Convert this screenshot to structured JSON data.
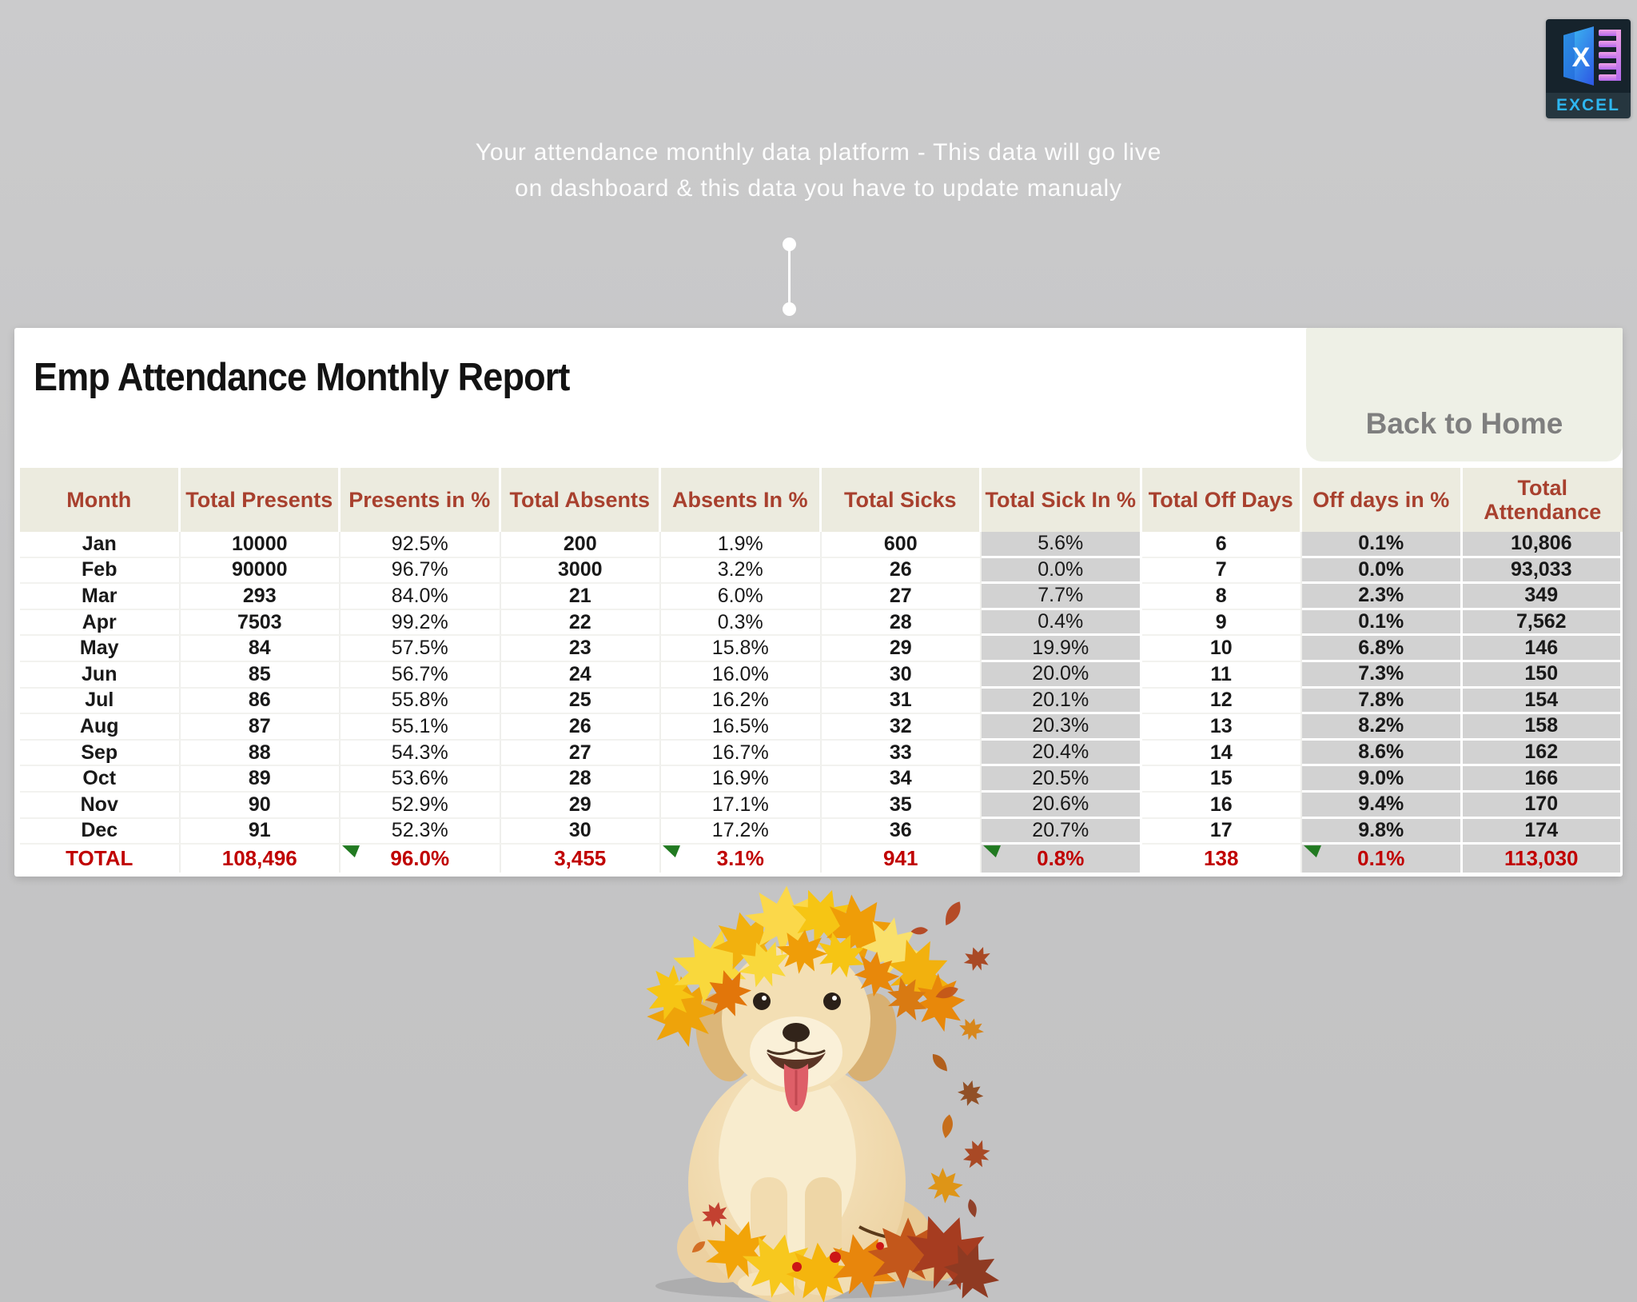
{
  "note": {
    "line1": "Your attendance monthly data platform - This data will go live",
    "line2": "on dashboard & this data you have to update manualy"
  },
  "logo": {
    "label": "EXCEL"
  },
  "panel": {
    "title": "Emp Attendance Monthly Report",
    "back_button_label": "Back to Home"
  },
  "table": {
    "columns": [
      {
        "label": "Month",
        "bold": true,
        "gray": false
      },
      {
        "label": "Total Presents",
        "bold": true,
        "gray": false
      },
      {
        "label": "Presents in %",
        "bold": false,
        "gray": false
      },
      {
        "label": "Total Absents",
        "bold": true,
        "gray": false
      },
      {
        "label": "Absents In %",
        "bold": false,
        "gray": false
      },
      {
        "label": "Total Sicks",
        "bold": true,
        "gray": false
      },
      {
        "label": "Total Sick In %",
        "bold": false,
        "gray": true
      },
      {
        "label": "Total Off Days",
        "bold": true,
        "gray": false
      },
      {
        "label": "Off days in %",
        "bold": true,
        "gray": true
      },
      {
        "label": "Total Attendance",
        "bold": true,
        "gray": true,
        "wrap": true
      }
    ],
    "rows": [
      {
        "month": "Jan",
        "values": [
          "10000",
          "92.5%",
          "200",
          "1.9%",
          "600",
          "5.6%",
          "6",
          "0.1%",
          "10,806"
        ]
      },
      {
        "month": "Feb",
        "values": [
          "90000",
          "96.7%",
          "3000",
          "3.2%",
          "26",
          "0.0%",
          "7",
          "0.0%",
          "93,033"
        ]
      },
      {
        "month": "Mar",
        "values": [
          "293",
          "84.0%",
          "21",
          "6.0%",
          "27",
          "7.7%",
          "8",
          "2.3%",
          "349"
        ]
      },
      {
        "month": "Apr",
        "values": [
          "7503",
          "99.2%",
          "22",
          "0.3%",
          "28",
          "0.4%",
          "9",
          "0.1%",
          "7,562"
        ]
      },
      {
        "month": "May",
        "values": [
          "84",
          "57.5%",
          "23",
          "15.8%",
          "29",
          "19.9%",
          "10",
          "6.8%",
          "146"
        ]
      },
      {
        "month": "Jun",
        "values": [
          "85",
          "56.7%",
          "24",
          "16.0%",
          "30",
          "20.0%",
          "11",
          "7.3%",
          "150"
        ]
      },
      {
        "month": "Jul",
        "values": [
          "86",
          "55.8%",
          "25",
          "16.2%",
          "31",
          "20.1%",
          "12",
          "7.8%",
          "154"
        ]
      },
      {
        "month": "Aug",
        "values": [
          "87",
          "55.1%",
          "26",
          "16.5%",
          "32",
          "20.3%",
          "13",
          "8.2%",
          "158"
        ]
      },
      {
        "month": "Sep",
        "values": [
          "88",
          "54.3%",
          "27",
          "16.7%",
          "33",
          "20.4%",
          "14",
          "8.6%",
          "162"
        ]
      },
      {
        "month": "Oct",
        "values": [
          "89",
          "53.6%",
          "28",
          "16.9%",
          "34",
          "20.5%",
          "15",
          "9.0%",
          "166"
        ]
      },
      {
        "month": "Nov",
        "values": [
          "90",
          "52.9%",
          "29",
          "17.1%",
          "35",
          "20.6%",
          "16",
          "9.4%",
          "170"
        ]
      },
      {
        "month": "Dec",
        "values": [
          "91",
          "52.3%",
          "30",
          "17.2%",
          "36",
          "20.7%",
          "17",
          "9.8%",
          "174"
        ]
      }
    ],
    "total_row": {
      "label": "TOTAL",
      "values": [
        "108,496",
        "96.0%",
        "3,455",
        "3.1%",
        "941",
        "0.8%",
        "138",
        "0.1%",
        "113,030"
      ],
      "flag_cols": [
        1,
        3,
        5,
        7
      ]
    }
  },
  "colors": {
    "page_background": "#c6c6c7",
    "panel_background": "#ffffff",
    "header_band": "#ecebdf",
    "header_text": "#a8402e",
    "gray_cell": "#d2d2d2",
    "total_text": "#c00000",
    "flag_green": "#217a21",
    "note_text": "#fdfdfd",
    "back_button_bg": "#eef0e6",
    "back_button_text": "#7f7f7f",
    "logo_label_text": "#2eb6f0"
  }
}
